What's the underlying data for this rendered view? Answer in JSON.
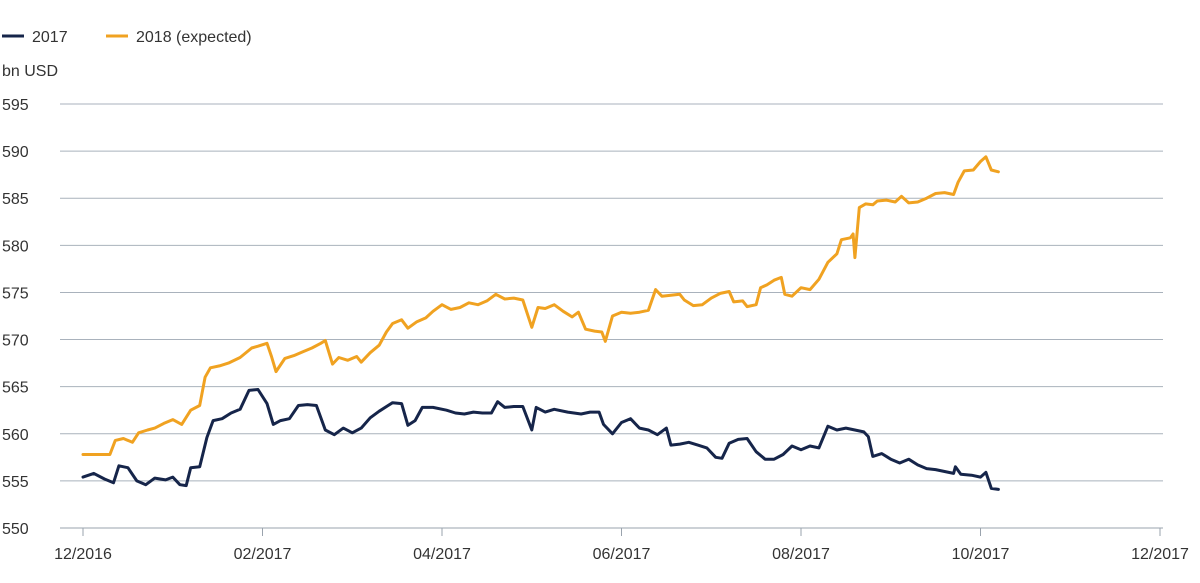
{
  "chart_data": {
    "type": "line",
    "title": "",
    "xlabel": "",
    "ylabel": "bn USD",
    "ylim": [
      550,
      595
    ],
    "x_ticks": [
      "12/2016",
      "02/2017",
      "04/2017",
      "06/2017",
      "08/2017",
      "10/2017",
      "12/2017"
    ],
    "y_ticks": [
      550,
      555,
      560,
      565,
      570,
      575,
      580,
      585,
      590,
      595
    ],
    "grid": "horizontal",
    "legend": "top-left",
    "x_unit": "months since 12/2016",
    "series": [
      {
        "name": "2017",
        "color": "#16254a",
        "points": [
          [
            0.0,
            555.4
          ],
          [
            0.12,
            555.8
          ],
          [
            0.24,
            555.2
          ],
          [
            0.34,
            554.8
          ],
          [
            0.4,
            556.6
          ],
          [
            0.5,
            556.4
          ],
          [
            0.6,
            555.0
          ],
          [
            0.7,
            554.6
          ],
          [
            0.8,
            555.3
          ],
          [
            0.92,
            555.1
          ],
          [
            1.0,
            555.4
          ],
          [
            1.08,
            554.6
          ],
          [
            1.15,
            554.5
          ],
          [
            1.2,
            556.4
          ],
          [
            1.3,
            556.5
          ],
          [
            1.38,
            559.6
          ],
          [
            1.45,
            561.4
          ],
          [
            1.55,
            561.6
          ],
          [
            1.65,
            562.2
          ],
          [
            1.75,
            562.6
          ],
          [
            1.85,
            564.6
          ],
          [
            1.95,
            564.7
          ],
          [
            2.05,
            563.2
          ],
          [
            2.12,
            561.0
          ],
          [
            2.2,
            561.4
          ],
          [
            2.3,
            561.6
          ],
          [
            2.4,
            563.0
          ],
          [
            2.5,
            563.1
          ],
          [
            2.6,
            563.0
          ],
          [
            2.7,
            560.4
          ],
          [
            2.8,
            559.9
          ],
          [
            2.9,
            560.6
          ],
          [
            3.0,
            560.1
          ],
          [
            3.1,
            560.6
          ],
          [
            3.2,
            561.7
          ],
          [
            3.3,
            562.4
          ],
          [
            3.4,
            563.0
          ],
          [
            3.45,
            563.3
          ],
          [
            3.55,
            563.2
          ],
          [
            3.62,
            560.9
          ],
          [
            3.7,
            561.4
          ],
          [
            3.78,
            562.8
          ],
          [
            3.9,
            562.8
          ],
          [
            4.05,
            562.5
          ],
          [
            4.15,
            562.2
          ],
          [
            4.25,
            562.1
          ],
          [
            4.35,
            562.3
          ],
          [
            4.45,
            562.2
          ],
          [
            4.55,
            562.2
          ],
          [
            4.62,
            563.4
          ],
          [
            4.7,
            562.8
          ],
          [
            4.8,
            562.9
          ],
          [
            4.9,
            562.9
          ],
          [
            5.0,
            560.4
          ],
          [
            5.05,
            562.8
          ],
          [
            5.15,
            562.3
          ],
          [
            5.25,
            562.6
          ],
          [
            5.4,
            562.3
          ],
          [
            5.55,
            562.1
          ],
          [
            5.65,
            562.3
          ],
          [
            5.75,
            562.3
          ],
          [
            5.8,
            561.0
          ],
          [
            5.9,
            560.0
          ],
          [
            6.0,
            561.2
          ],
          [
            6.1,
            561.6
          ],
          [
            6.2,
            560.6
          ],
          [
            6.3,
            560.4
          ],
          [
            6.4,
            559.9
          ],
          [
            6.5,
            560.6
          ],
          [
            6.55,
            558.8
          ],
          [
            6.65,
            558.9
          ],
          [
            6.75,
            559.1
          ],
          [
            6.85,
            558.8
          ],
          [
            6.95,
            558.5
          ],
          [
            7.05,
            557.5
          ],
          [
            7.12,
            557.4
          ],
          [
            7.2,
            559.0
          ],
          [
            7.3,
            559.4
          ],
          [
            7.4,
            559.5
          ],
          [
            7.5,
            558.1
          ],
          [
            7.6,
            557.3
          ],
          [
            7.7,
            557.3
          ],
          [
            7.8,
            557.8
          ],
          [
            7.9,
            558.7
          ],
          [
            8.0,
            558.3
          ],
          [
            8.1,
            558.7
          ],
          [
            8.2,
            558.5
          ],
          [
            8.3,
            560.8
          ],
          [
            8.4,
            560.4
          ],
          [
            8.5,
            560.6
          ],
          [
            8.6,
            560.4
          ],
          [
            8.7,
            560.2
          ],
          [
            8.75,
            559.7
          ],
          [
            8.8,
            557.6
          ],
          [
            8.9,
            557.9
          ],
          [
            9.0,
            557.3
          ],
          [
            9.1,
            556.9
          ],
          [
            9.2,
            557.3
          ],
          [
            9.3,
            556.7
          ],
          [
            9.4,
            556.3
          ],
          [
            9.5,
            556.2
          ],
          [
            9.6,
            556.0
          ],
          [
            9.7,
            555.8
          ],
          [
            9.72,
            556.5
          ],
          [
            9.78,
            555.7
          ],
          [
            9.9,
            555.6
          ],
          [
            10.0,
            555.4
          ],
          [
            10.06,
            555.9
          ],
          [
            10.12,
            554.2
          ],
          [
            10.2,
            554.1
          ]
        ]
      },
      {
        "name": "2018 (expected)",
        "color": "#f0a221",
        "points": [
          [
            0.0,
            557.8
          ],
          [
            0.15,
            557.8
          ],
          [
            0.3,
            557.8
          ],
          [
            0.36,
            559.3
          ],
          [
            0.45,
            559.5
          ],
          [
            0.55,
            559.1
          ],
          [
            0.62,
            560.1
          ],
          [
            0.72,
            560.4
          ],
          [
            0.8,
            560.6
          ],
          [
            0.9,
            561.1
          ],
          [
            1.0,
            561.5
          ],
          [
            1.1,
            561.0
          ],
          [
            1.2,
            562.5
          ],
          [
            1.3,
            563.0
          ],
          [
            1.36,
            566.0
          ],
          [
            1.42,
            567.0
          ],
          [
            1.52,
            567.2
          ],
          [
            1.62,
            567.5
          ],
          [
            1.75,
            568.1
          ],
          [
            1.88,
            569.1
          ],
          [
            1.95,
            569.3
          ],
          [
            2.05,
            569.6
          ],
          [
            2.1,
            568.2
          ],
          [
            2.15,
            566.6
          ],
          [
            2.25,
            568.0
          ],
          [
            2.35,
            568.3
          ],
          [
            2.45,
            568.7
          ],
          [
            2.55,
            569.1
          ],
          [
            2.65,
            569.6
          ],
          [
            2.7,
            569.9
          ],
          [
            2.78,
            567.4
          ],
          [
            2.85,
            568.1
          ],
          [
            2.95,
            567.8
          ],
          [
            3.05,
            568.2
          ],
          [
            3.1,
            567.6
          ],
          [
            3.2,
            568.6
          ],
          [
            3.3,
            569.4
          ],
          [
            3.38,
            570.8
          ],
          [
            3.45,
            571.7
          ],
          [
            3.55,
            572.1
          ],
          [
            3.62,
            571.2
          ],
          [
            3.72,
            571.9
          ],
          [
            3.82,
            572.3
          ],
          [
            3.9,
            573.0
          ],
          [
            4.0,
            573.7
          ],
          [
            4.1,
            573.2
          ],
          [
            4.2,
            573.4
          ],
          [
            4.3,
            573.9
          ],
          [
            4.4,
            573.7
          ],
          [
            4.5,
            574.1
          ],
          [
            4.6,
            574.8
          ],
          [
            4.7,
            574.3
          ],
          [
            4.8,
            574.4
          ],
          [
            4.9,
            574.2
          ],
          [
            5.0,
            571.3
          ],
          [
            5.07,
            573.4
          ],
          [
            5.15,
            573.3
          ],
          [
            5.25,
            573.7
          ],
          [
            5.35,
            573.0
          ],
          [
            5.45,
            572.4
          ],
          [
            5.52,
            572.9
          ],
          [
            5.6,
            571.1
          ],
          [
            5.7,
            570.9
          ],
          [
            5.78,
            570.8
          ],
          [
            5.82,
            569.8
          ],
          [
            5.9,
            572.5
          ],
          [
            6.0,
            572.9
          ],
          [
            6.1,
            572.8
          ],
          [
            6.2,
            572.9
          ],
          [
            6.3,
            573.1
          ],
          [
            6.38,
            575.3
          ],
          [
            6.45,
            574.6
          ],
          [
            6.55,
            574.7
          ],
          [
            6.65,
            574.8
          ],
          [
            6.7,
            574.2
          ],
          [
            6.8,
            573.6
          ],
          [
            6.9,
            573.7
          ],
          [
            7.0,
            574.4
          ],
          [
            7.1,
            574.9
          ],
          [
            7.2,
            575.1
          ],
          [
            7.25,
            574.0
          ],
          [
            7.35,
            574.1
          ],
          [
            7.4,
            573.5
          ],
          [
            7.5,
            573.7
          ],
          [
            7.55,
            575.5
          ],
          [
            7.62,
            575.8
          ],
          [
            7.7,
            576.3
          ],
          [
            7.78,
            576.6
          ],
          [
            7.82,
            574.8
          ],
          [
            7.9,
            574.6
          ],
          [
            8.0,
            575.5
          ],
          [
            8.1,
            575.3
          ],
          [
            8.2,
            576.4
          ],
          [
            8.3,
            578.2
          ],
          [
            8.4,
            579.1
          ],
          [
            8.45,
            580.6
          ],
          [
            8.55,
            580.8
          ],
          [
            8.58,
            581.2
          ],
          [
            8.6,
            578.7
          ],
          [
            8.65,
            584.0
          ],
          [
            8.72,
            584.4
          ],
          [
            8.8,
            584.3
          ],
          [
            8.85,
            584.7
          ],
          [
            8.95,
            584.8
          ],
          [
            9.05,
            584.6
          ],
          [
            9.12,
            585.2
          ],
          [
            9.2,
            584.5
          ],
          [
            9.3,
            584.6
          ],
          [
            9.4,
            585.0
          ],
          [
            9.5,
            585.5
          ],
          [
            9.6,
            585.6
          ],
          [
            9.7,
            585.4
          ],
          [
            9.75,
            586.7
          ],
          [
            9.82,
            587.9
          ],
          [
            9.92,
            588.0
          ],
          [
            10.0,
            588.9
          ],
          [
            10.06,
            589.4
          ],
          [
            10.12,
            588.0
          ],
          [
            10.2,
            587.8
          ]
        ]
      }
    ]
  }
}
